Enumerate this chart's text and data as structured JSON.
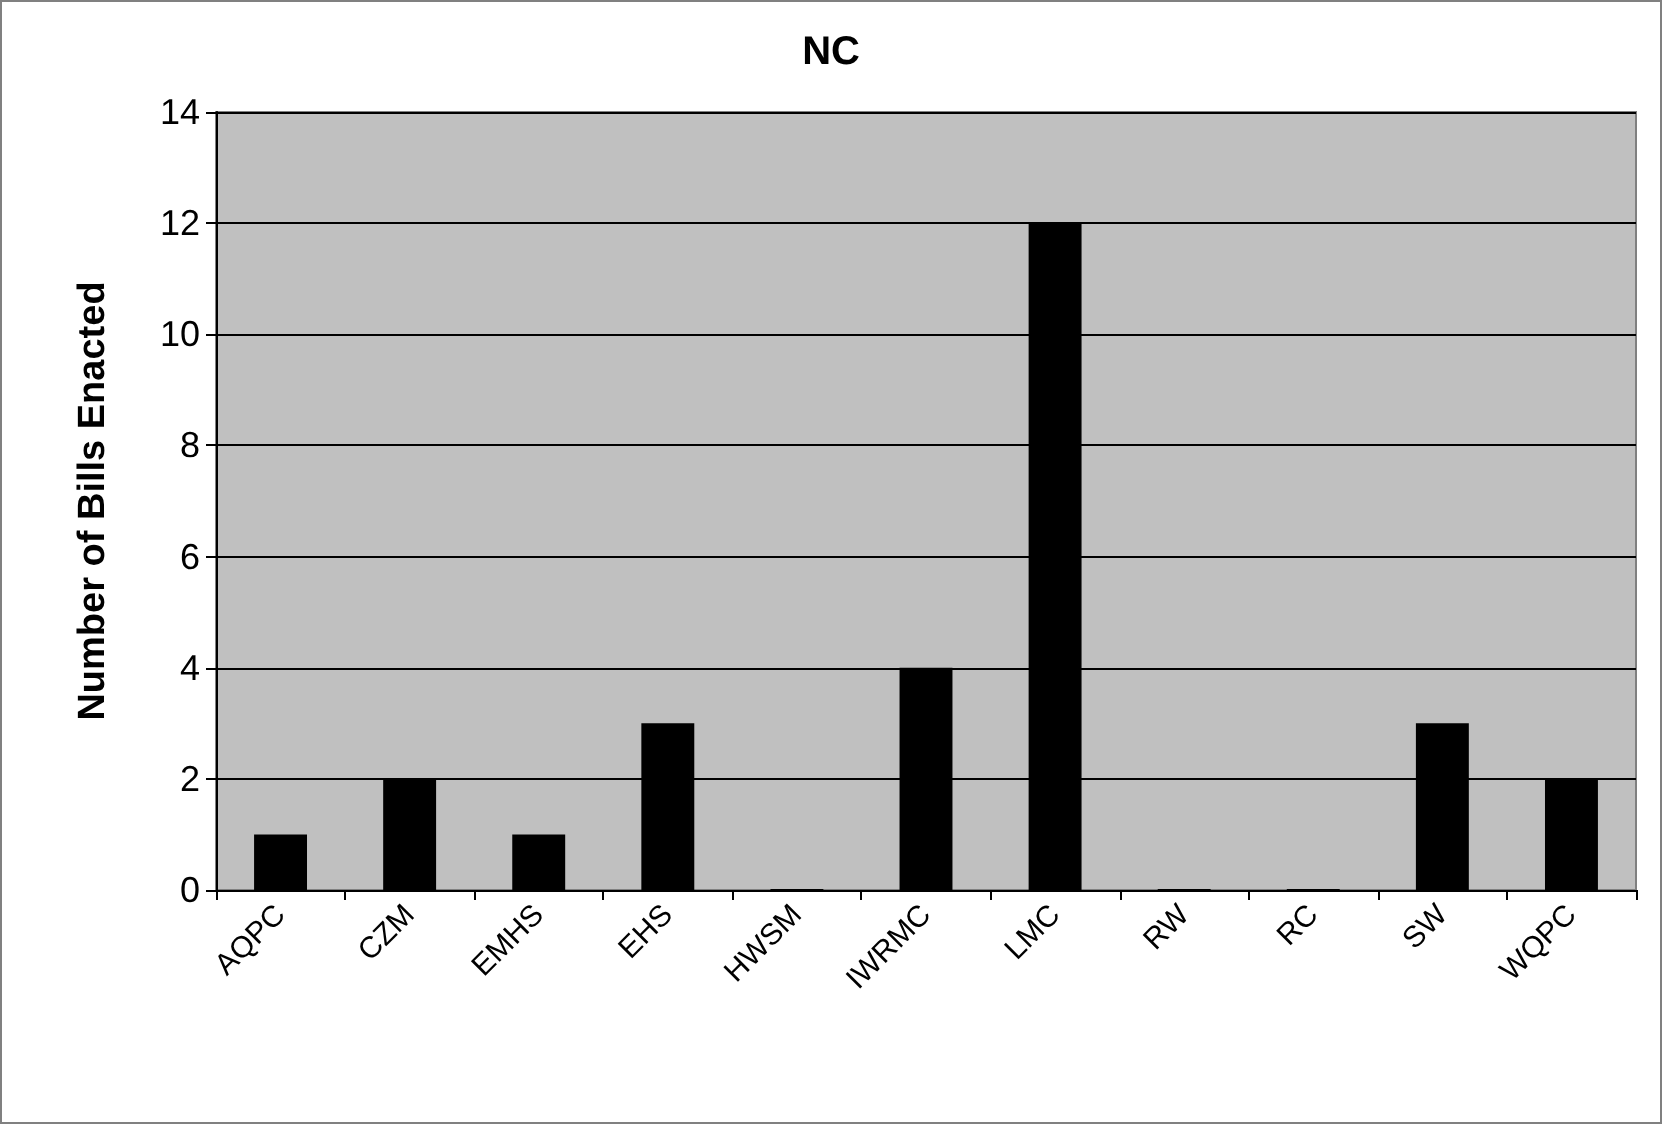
{
  "chart_data": {
    "type": "bar",
    "title": "NC",
    "ylabel": "Number of Bills Enacted",
    "categories": [
      "AQPC",
      "CZM",
      "EMHS",
      "EHS",
      "HWSM",
      "IWRMC",
      "LMC",
      "RW",
      "RC",
      "SW",
      "WQPC"
    ],
    "values": [
      1,
      2,
      1,
      3,
      0,
      4,
      12,
      0,
      0,
      3,
      2
    ],
    "color": "#000000",
    "ylim": [
      0,
      14
    ],
    "yticks": [
      0,
      2,
      4,
      6,
      8,
      10,
      12,
      14
    ],
    "grid": "y"
  }
}
